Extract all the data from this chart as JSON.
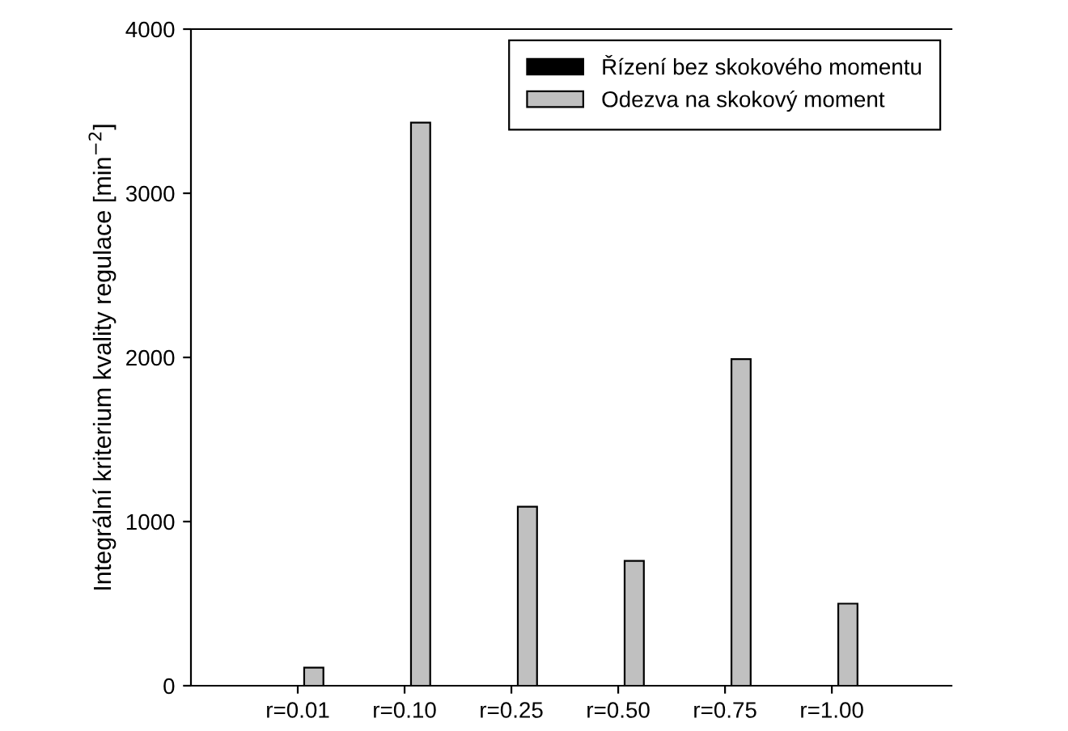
{
  "chart_data": {
    "type": "bar",
    "ylabel": "Integrální kriterium kvality regulace [min$^{−2}$]",
    "categories": [
      "r=0.01",
      "r=0.10",
      "r=0.25",
      "r=0.50",
      "r=0.75",
      "r=1.00"
    ],
    "series": [
      {
        "name": "Řízení bez skokového momentu",
        "color": "#000000",
        "values": [
          0,
          0,
          0,
          0,
          0,
          0
        ]
      },
      {
        "name": "Odezva na skokový moment",
        "color": "#c0c0c0",
        "values": [
          110,
          3430,
          1090,
          760,
          1990,
          500
        ]
      }
    ],
    "ylim": [
      0,
      4000
    ],
    "yticks": [
      0,
      1000,
      2000,
      3000,
      4000
    ],
    "grid": false,
    "legend": "top right"
  }
}
